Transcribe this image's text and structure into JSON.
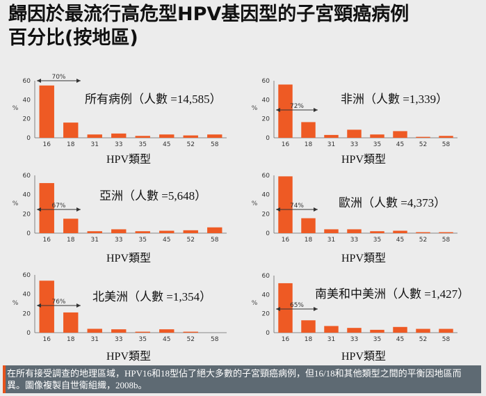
{
  "title_line1": "歸因於最流行高危型HPV基因型的子宮頸癌病例",
  "title_line2": "百分比(按地區)",
  "bar_color": "#ee5a24",
  "footnote": "在所有接受調查的地理區域，HPV16和18型佔了絕大多數的子宮頸癌病例，但16/18和其他類型之間的平衡因地區而異。圖像複製自世衛組織，2008b。",
  "chart_data": [
    {
      "type": "bar",
      "title": "所有病例（人數 =14,585）",
      "xlabel": "HPV類型",
      "ylabel": "%",
      "categories": [
        "16",
        "18",
        "31",
        "33",
        "35",
        "45",
        "52",
        "58"
      ],
      "values": [
        55,
        16,
        3.5,
        4.5,
        2,
        3.5,
        2.5,
        3.5
      ],
      "ylim": [
        0,
        60
      ],
      "yticks": [
        "0",
        "20",
        "40",
        "60"
      ],
      "annotation": "70%"
    },
    {
      "type": "bar",
      "title": "非洲（人數 =1,339）",
      "xlabel": "HPV類型",
      "ylabel": "%",
      "categories": [
        "16",
        "18",
        "31",
        "33",
        "35",
        "45",
        "52",
        "58"
      ],
      "values": [
        56,
        16.5,
        3,
        8.5,
        3.5,
        7,
        1,
        2
      ],
      "ylim": [
        0,
        60
      ],
      "yticks": [
        "0",
        "20",
        "40",
        "60"
      ],
      "annotation": "72%"
    },
    {
      "type": "bar",
      "title": "亞洲（人數 =5,648）",
      "xlabel": "HPV類型",
      "ylabel": "%",
      "categories": [
        "16",
        "18",
        "31",
        "33",
        "35",
        "45",
        "52",
        "58"
      ],
      "values": [
        52,
        15,
        2,
        4,
        2,
        2.5,
        3,
        6
      ],
      "ylim": [
        0,
        60
      ],
      "yticks": [
        "0",
        "20",
        "40",
        "60"
      ],
      "annotation": "67%"
    },
    {
      "type": "bar",
      "title": "歐洲（人數 =4,373）",
      "xlabel": "HPV類型",
      "ylabel": "%",
      "categories": [
        "16",
        "18",
        "31",
        "33",
        "35",
        "45",
        "52",
        "58"
      ],
      "values": [
        59,
        15.5,
        4,
        4,
        2,
        2.5,
        1,
        1
      ],
      "ylim": [
        0,
        60
      ],
      "yticks": [
        "0",
        "20",
        "40",
        "60"
      ],
      "annotation": "74%"
    },
    {
      "type": "bar",
      "title": "北美洲（人數 =1,354）",
      "xlabel": "HPV類型",
      "ylabel": "%",
      "categories": [
        "16",
        "18",
        "31",
        "33",
        "35",
        "45",
        "52",
        "58"
      ],
      "values": [
        54,
        21,
        4,
        3.5,
        1,
        3.5,
        1,
        0
      ],
      "ylim": [
        0,
        60
      ],
      "yticks": [
        "0",
        "20",
        "40",
        "60"
      ],
      "annotation": "76%"
    },
    {
      "type": "bar",
      "title": "南美和中美洲（人數 =1,427）",
      "xlabel": "HPV類型",
      "ylabel": "%",
      "categories": [
        "16",
        "18",
        "31",
        "33",
        "35",
        "45",
        "52",
        "58"
      ],
      "values": [
        52,
        13,
        7,
        5,
        3,
        6,
        4,
        4
      ],
      "ylim": [
        0,
        60
      ],
      "yticks": [
        "0",
        "20",
        "40",
        "60"
      ],
      "annotation": "65%"
    }
  ]
}
